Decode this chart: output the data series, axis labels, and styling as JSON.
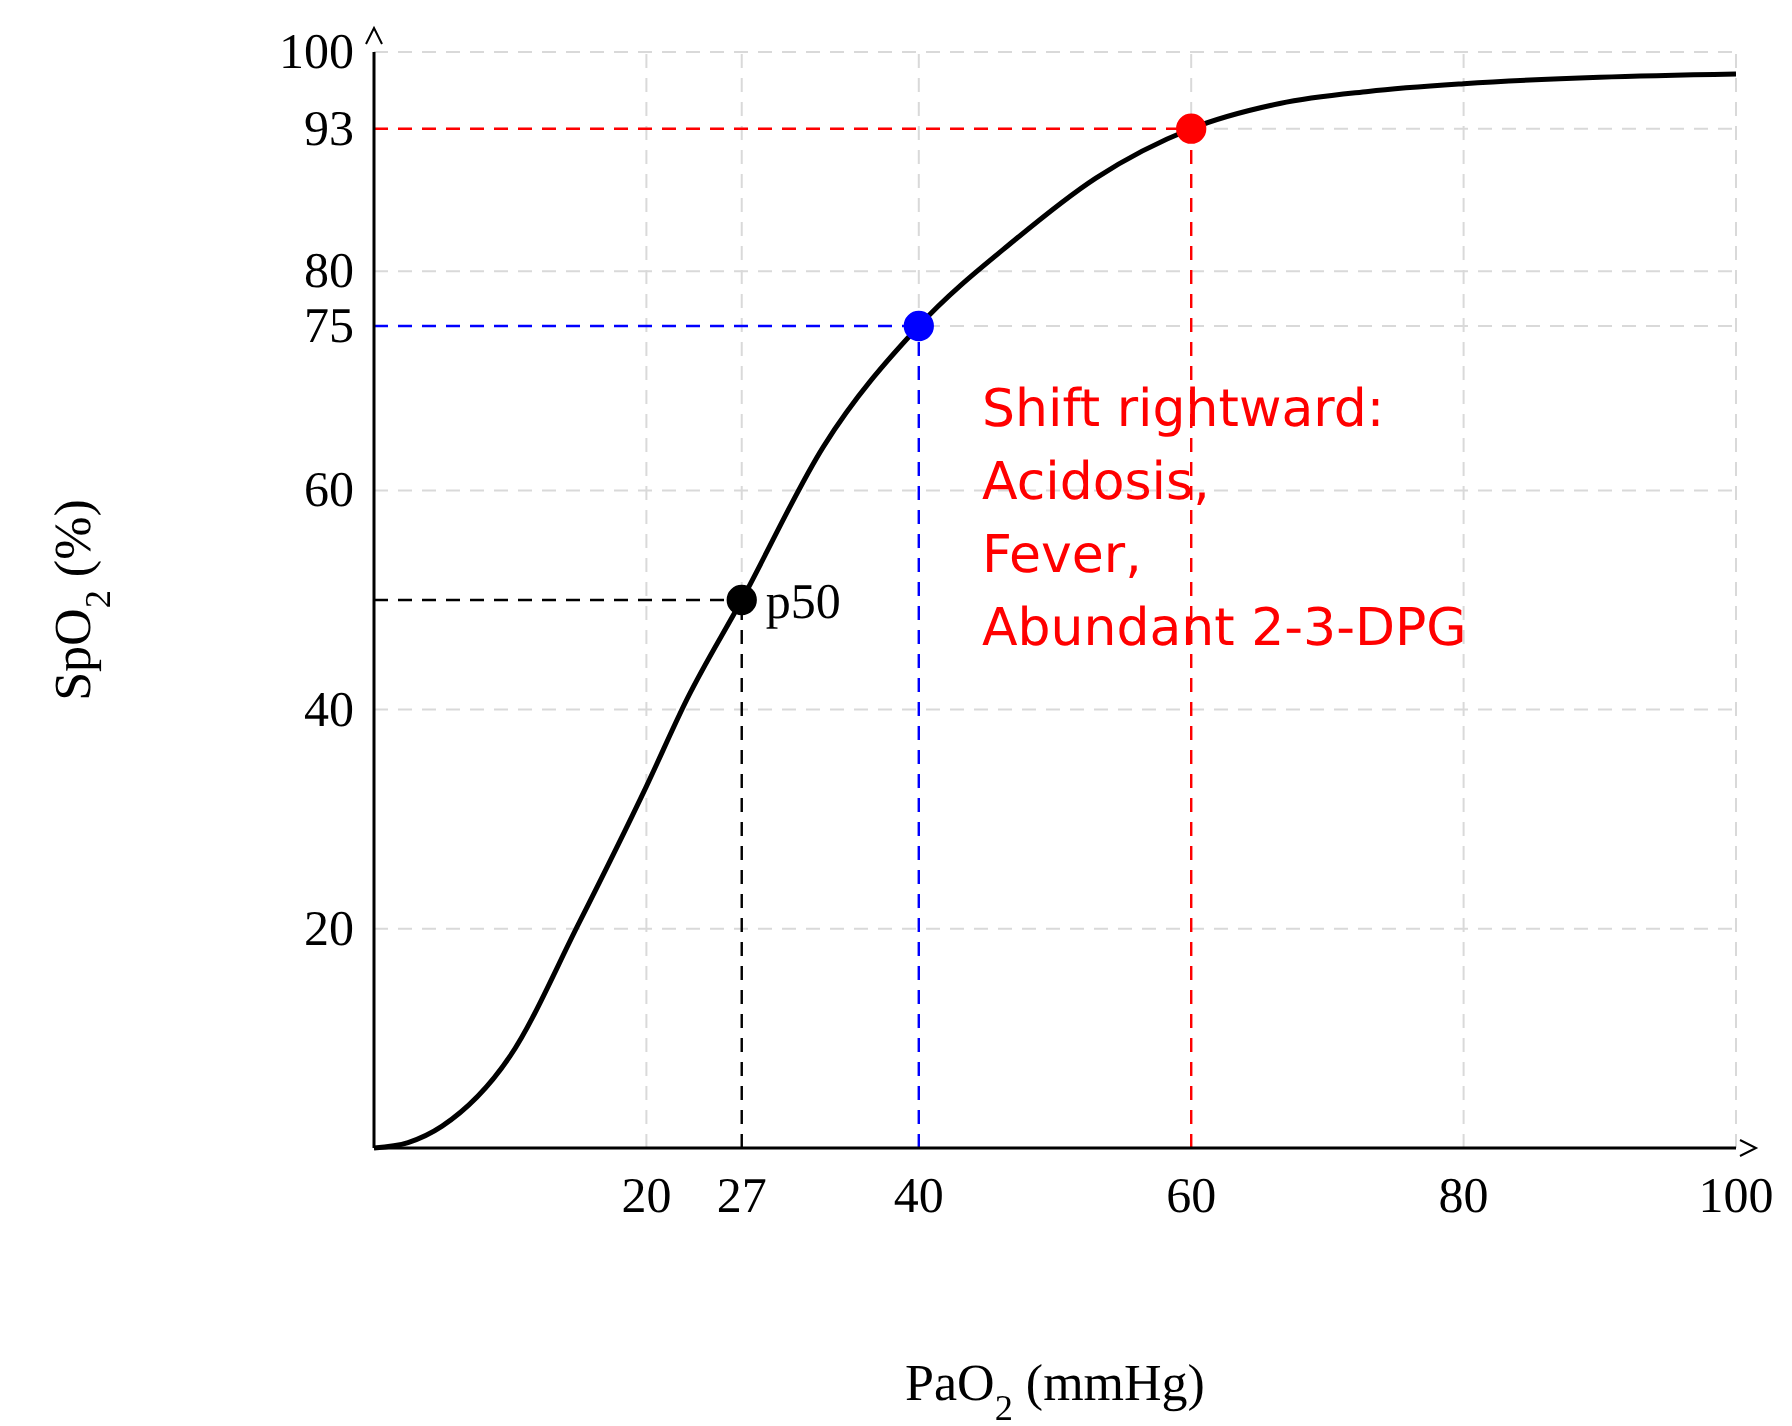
{
  "chart_data": {
    "type": "line",
    "xlabel": "PaO$_{2}$ (mmHg)",
    "ylabel": "SpO$_{2}$ (%)",
    "xlim": [
      0,
      100
    ],
    "ylim": [
      0,
      100
    ],
    "xticks": [
      20,
      27,
      40,
      60,
      80,
      100
    ],
    "yticks": [
      20,
      40,
      60,
      75,
      80,
      93,
      100
    ],
    "grid": true,
    "series": [
      {
        "color": "#000000",
        "marker": "none",
        "x": [
          0,
          2.5,
          5,
          10,
          15,
          20,
          23,
          27,
          33,
          40,
          47,
          53,
          60,
          66.5,
          73,
          80,
          90,
          100
        ],
        "values": [
          0,
          0.5,
          2,
          8.4,
          20.4,
          33,
          41,
          50,
          64,
          75,
          82.8,
          88.5,
          93,
          95.3,
          96.4,
          97.1,
          97.7,
          98
        ]
      },
      {
        "type": "scatter",
        "marker": "circle",
        "x": [
          27,
          40,
          60
        ],
        "values": [
          50,
          75,
          93
        ],
        "colors": [
          "#000000",
          "#0000ff",
          "#ff0000"
        ]
      }
    ],
    "ref_lines": [
      {
        "axis": "x",
        "value": 27,
        "color": "#000000",
        "line_style": "dashed"
      },
      {
        "axis": "y",
        "value": 50,
        "color": "#000000",
        "line_style": "dashed"
      },
      {
        "axis": "x",
        "value": 40,
        "color": "#0000ff",
        "line_style": "dashed"
      },
      {
        "axis": "y",
        "value": 75,
        "color": "#0000ff",
        "line_style": "dashed"
      },
      {
        "axis": "x",
        "value": 60,
        "color": "#ff0000",
        "line_style": "dashed"
      },
      {
        "axis": "y",
        "value": 93,
        "color": "#ff0000",
        "line_style": "dashed"
      }
    ],
    "annotations": [
      {
        "text": "p50",
        "x": 27,
        "y": 50
      },
      "Shift rightward:\nAcidosis,\nFever,\nAbundant 2-3-DPG"
    ]
  }
}
